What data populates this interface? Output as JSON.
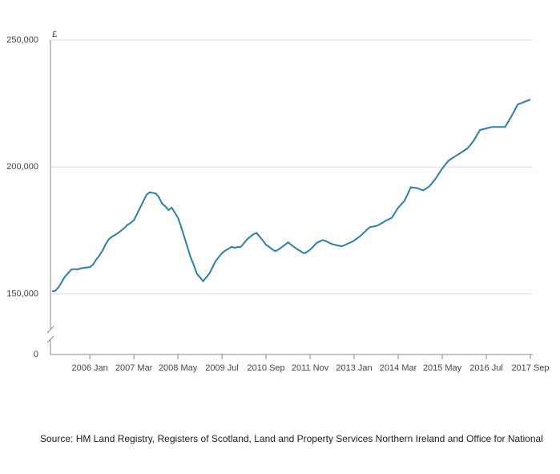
{
  "chart_data": {
    "type": "line",
    "y_unit": "£",
    "source": "Source: HM Land Registry, Registers of Scotland, Land and Property Services Northern Ireland and Office for National",
    "categories": [
      "2005 Jan",
      "2005 Feb",
      "2005 Mar",
      "2005 Apr",
      "2005 May",
      "2005 Jun",
      "2005 Jul",
      "2005 Aug",
      "2005 Sep",
      "2005 Oct",
      "2005 Nov",
      "2005 Dec",
      "2006 Jan",
      "2006 Feb",
      "2006 Mar",
      "2006 Apr",
      "2006 May",
      "2006 Jun",
      "2006 Jul",
      "2006 Aug",
      "2006 Sep",
      "2006 Oct",
      "2006 Nov",
      "2006 Dec",
      "2007 Jan",
      "2007 Feb",
      "2007 Mar",
      "2007 Apr",
      "2007 May",
      "2007 Jun",
      "2007 Jul",
      "2007 Aug",
      "2007 Sep",
      "2007 Oct",
      "2007 Nov",
      "2007 Dec",
      "2008 Jan",
      "2008 Feb",
      "2008 Mar",
      "2008 Apr",
      "2008 May",
      "2008 Jun",
      "2008 Jul",
      "2008 Aug",
      "2008 Sep",
      "2008 Oct",
      "2008 Nov",
      "2008 Dec",
      "2009 Jan",
      "2009 Feb",
      "2009 Mar",
      "2009 Apr",
      "2009 May",
      "2009 Jun",
      "2009 Jul",
      "2009 Aug",
      "2009 Sep",
      "2009 Oct",
      "2009 Nov",
      "2009 Dec",
      "2010 Jan",
      "2010 Feb",
      "2010 Mar",
      "2010 Apr",
      "2010 May",
      "2010 Jun",
      "2010 Jul",
      "2010 Aug",
      "2010 Sep",
      "2010 Oct",
      "2010 Nov",
      "2010 Dec",
      "2011 Jan",
      "2011 Feb",
      "2011 Mar",
      "2011 Apr",
      "2011 May",
      "2011 Jun",
      "2011 Jul",
      "2011 Aug",
      "2011 Sep",
      "2011 Oct",
      "2011 Nov",
      "2011 Dec",
      "2012 Jan",
      "2012 Feb",
      "2012 Mar",
      "2012 Apr",
      "2012 May",
      "2012 Jun",
      "2012 Jul",
      "2012 Aug",
      "2012 Sep",
      "2012 Oct",
      "2012 Nov",
      "2012 Dec",
      "2013 Jan",
      "2013 Feb",
      "2013 Mar",
      "2013 Apr",
      "2013 May",
      "2013 Jun",
      "2013 Jul",
      "2013 Aug",
      "2013 Sep",
      "2013 Oct",
      "2013 Nov",
      "2013 Dec",
      "2014 Jan",
      "2014 Feb",
      "2014 Mar",
      "2014 Apr",
      "2014 May",
      "2014 Jun",
      "2014 Jul",
      "2014 Aug",
      "2014 Sep",
      "2014 Oct",
      "2014 Nov",
      "2014 Dec",
      "2015 Jan",
      "2015 Feb",
      "2015 Mar",
      "2015 Apr",
      "2015 May",
      "2015 Jun",
      "2015 Jul",
      "2015 Aug",
      "2015 Sep",
      "2015 Oct",
      "2015 Nov",
      "2015 Dec",
      "2016 Jan",
      "2016 Feb",
      "2016 Mar",
      "2016 Apr",
      "2016 May",
      "2016 Jun",
      "2016 Jul",
      "2016 Aug",
      "2016 Sep",
      "2016 Oct",
      "2016 Nov",
      "2016 Dec",
      "2017 Jan",
      "2017 Feb",
      "2017 Mar",
      "2017 Apr",
      "2017 May",
      "2017 Jun",
      "2017 Jul",
      "2017 Aug",
      "2017 Sep"
    ],
    "values": [
      151000,
      151200,
      152500,
      154500,
      156600,
      158000,
      159500,
      159800,
      159600,
      160000,
      160200,
      160400,
      160500,
      161500,
      163500,
      165000,
      167000,
      169500,
      171500,
      172500,
      173200,
      174000,
      175000,
      176000,
      177200,
      178000,
      179000,
      181500,
      184000,
      186500,
      189000,
      190000,
      189800,
      189500,
      188000,
      185500,
      184500,
      183000,
      184000,
      182000,
      180000,
      176500,
      172500,
      168500,
      164500,
      161500,
      158000,
      156500,
      155000,
      156500,
      158000,
      160500,
      163000,
      164500,
      166000,
      167000,
      167700,
      168500,
      168200,
      168400,
      168500,
      170000,
      171500,
      172500,
      173500,
      174000,
      172500,
      171000,
      169300,
      168500,
      167500,
      166800,
      167500,
      168400,
      169300,
      170300,
      169300,
      168400,
      167500,
      166800,
      166000,
      166500,
      167400,
      168600,
      170000,
      170600,
      171200,
      170800,
      170200,
      169600,
      169300,
      169000,
      168700,
      169200,
      169800,
      170300,
      171000,
      171900,
      172800,
      174000,
      175200,
      176300,
      176500,
      176700,
      177300,
      178000,
      178800,
      179400,
      180000,
      182000,
      184000,
      185300,
      186700,
      189300,
      192000,
      191800,
      191700,
      191200,
      190800,
      191600,
      192500,
      194000,
      195600,
      197500,
      199400,
      201000,
      202500,
      203300,
      204100,
      204900,
      205700,
      206500,
      207300,
      208800,
      210400,
      212500,
      214600,
      214900,
      215200,
      215500,
      215800,
      215800,
      215800,
      215800,
      215800,
      217900,
      220000,
      222300,
      224700,
      225100,
      225600,
      226100,
      226600
    ],
    "color": "#2a7fa8",
    "xticks": [
      "2006 Jan",
      "2007 Mar",
      "2008 May",
      "2009 Jul",
      "2010 Sep",
      "2011 Nov",
      "2013 Jan",
      "2014 Mar",
      "2015 May",
      "2016 Jul",
      "2017 Sep"
    ],
    "ylim": [
      0,
      250000
    ],
    "axis_break": [
      0,
      134000
    ],
    "yticks": [
      0,
      {
        "value": 150000,
        "label": "150,000"
      },
      {
        "value": 200000,
        "label": "200,000"
      },
      {
        "value": 250000,
        "label": "250,000"
      }
    ],
    "grid": true
  }
}
